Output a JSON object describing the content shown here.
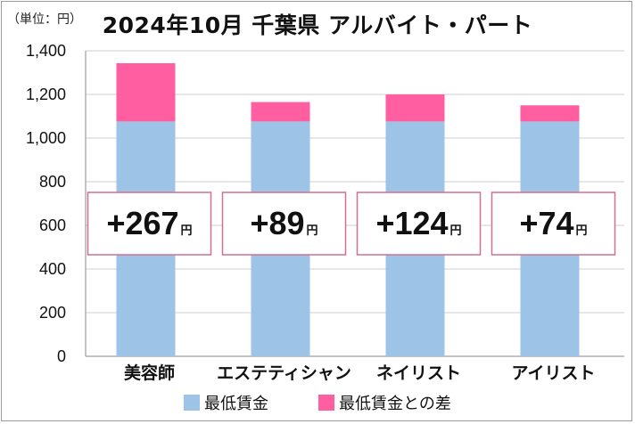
{
  "unit_label": "（単位：円）",
  "chart_data": {
    "type": "bar",
    "stacked": true,
    "title": "2024年10月 千葉県 アルバイト・パート",
    "categories": [
      "美容師",
      "エステティシャン",
      "ネイリスト",
      "アイリスト"
    ],
    "series": [
      {
        "name": "最低賃金",
        "values": [
          1076,
          1076,
          1076,
          1076
        ],
        "color": "#9dc3e6"
      },
      {
        "name": "最低賃金との差",
        "values": [
          267,
          89,
          124,
          74
        ],
        "color": "#ff5fa0"
      }
    ],
    "difference_labels": [
      "+267",
      "+89",
      "+124",
      "+74"
    ],
    "difference_unit": "円",
    "ylim": [
      0,
      1400
    ],
    "yticks": [
      0,
      200,
      400,
      600,
      800,
      1000,
      1200,
      1400
    ],
    "ytick_labels": [
      "0",
      "200",
      "400",
      "600",
      "800",
      "1,000",
      "1,200",
      "1,400"
    ],
    "grid": true,
    "legend_position": "bottom"
  }
}
